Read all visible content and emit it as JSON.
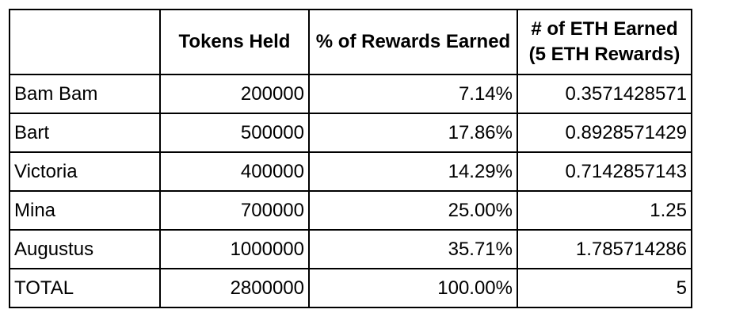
{
  "table": {
    "headers": [
      "",
      "Tokens Held",
      "% of Rewards Earned",
      "# of ETH Earned (5 ETH Rewards)"
    ],
    "rows": [
      {
        "name": "Bam Bam",
        "tokens": "200000",
        "pct": "7.14%",
        "eth": "0.3571428571"
      },
      {
        "name": "Bart",
        "tokens": "500000",
        "pct": "17.86%",
        "eth": "0.8928571429"
      },
      {
        "name": "Victoria",
        "tokens": "400000",
        "pct": "14.29%",
        "eth": "0.7142857143"
      },
      {
        "name": "Mina",
        "tokens": "700000",
        "pct": "25.00%",
        "eth": "1.25"
      },
      {
        "name": "Augustus",
        "tokens": "1000000",
        "pct": "35.71%",
        "eth": "1.785714286"
      },
      {
        "name": "TOTAL",
        "tokens": "2800000",
        "pct": "100.00%",
        "eth": "5"
      }
    ]
  }
}
